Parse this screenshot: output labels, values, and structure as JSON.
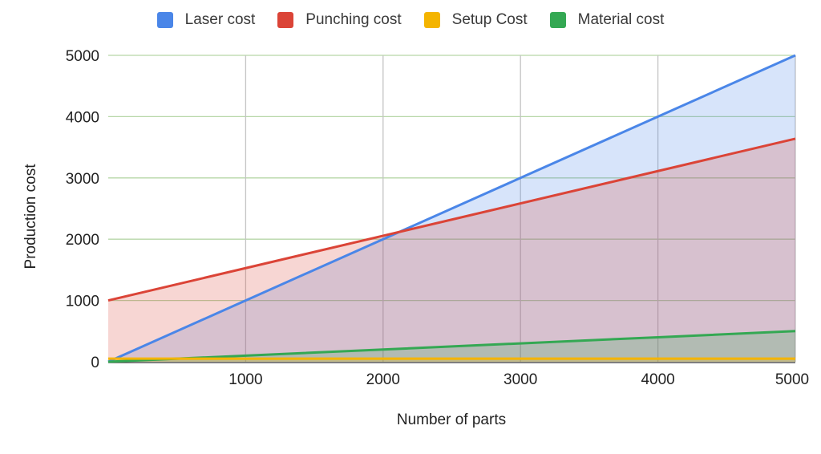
{
  "chart_data": {
    "type": "area",
    "title": "",
    "xlabel": "Number of parts",
    "ylabel": "Production cost",
    "xlim": [
      0,
      5000
    ],
    "ylim": [
      0,
      5000
    ],
    "x_ticks": [
      1000,
      2000,
      3000,
      4000,
      5000
    ],
    "y_ticks": [
      0,
      1000,
      2000,
      3000,
      4000,
      5000
    ],
    "grid": true,
    "legend_position": "top",
    "x": [
      0,
      1000,
      2000,
      3000,
      4000,
      5000
    ],
    "series": [
      {
        "name": "Laser cost",
        "color": "#4a86e8",
        "values": [
          0,
          1000,
          2000,
          3000,
          4000,
          5000
        ]
      },
      {
        "name": "Punching cost",
        "color": "#db4437",
        "values": [
          1000,
          1528,
          2056,
          2584,
          3112,
          3640
        ]
      },
      {
        "name": "Setup Cost",
        "color": "#f4b400",
        "values": [
          50,
          50,
          50,
          50,
          50,
          50
        ]
      },
      {
        "name": "Material cost",
        "color": "#34a853",
        "values": [
          0,
          100,
          200,
          300,
          400,
          500
        ]
      }
    ]
  },
  "legend": [
    {
      "label": "Laser cost",
      "color": "#4a86e8"
    },
    {
      "label": "Punching cost",
      "color": "#db4437"
    },
    {
      "label": "Setup Cost",
      "color": "#f4b400"
    },
    {
      "label": "Material cost",
      "color": "#34a853"
    }
  ],
  "axes": {
    "x_title": "Number of parts",
    "y_title": "Production cost"
  }
}
